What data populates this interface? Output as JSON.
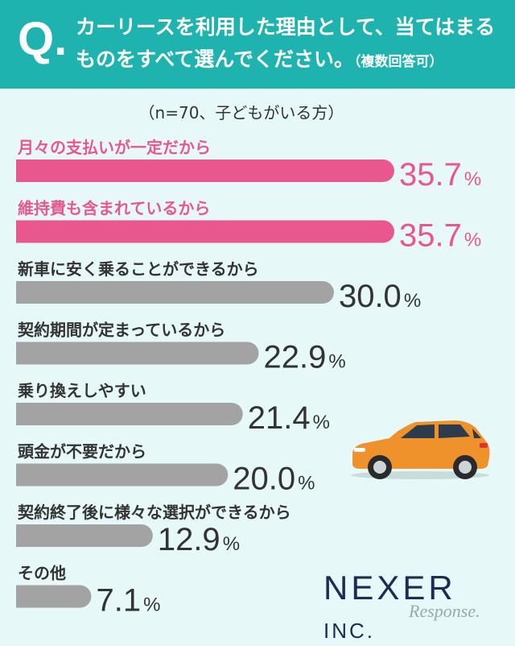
{
  "header": {
    "q_mark": "Q.",
    "question_line1": "カーリースを利用した理由として、当てはまる",
    "question_line2": "ものをすべて選んでください。",
    "question_note": "（複数回答可）"
  },
  "sample_note": "（n=70、子どもがいる方）",
  "colors": {
    "header": "#1fb3b0",
    "background": "#e6f8f8",
    "highlight": "#e8588e",
    "normal": "#a3a3a3"
  },
  "chart_data": {
    "type": "bar",
    "orientation": "horizontal",
    "unit": "%",
    "categories": [
      "月々の支払いが一定だから",
      "維持費も含まれているから",
      "新車に安く乗ることができるから",
      "契約期間が定まっているから",
      "乗り換えしやすい",
      "頭金が不要だから",
      "契約終了後に様々な選択ができるから",
      "その他"
    ],
    "values": [
      35.7,
      35.7,
      30.0,
      22.9,
      21.4,
      20.0,
      12.9,
      7.1
    ],
    "value_labels": [
      "35.7",
      "35.7",
      "30.0",
      "22.9",
      "21.4",
      "20.0",
      "12.9",
      "7.1"
    ],
    "highlighted": [
      true,
      true,
      false,
      false,
      false,
      false,
      false,
      false
    ],
    "xlim": [
      0,
      40
    ],
    "grid": false
  },
  "illustration": {
    "icon": "orange-car-icon"
  },
  "logo": {
    "main": "NEXER",
    "small": "INC."
  },
  "watermark": "Response."
}
